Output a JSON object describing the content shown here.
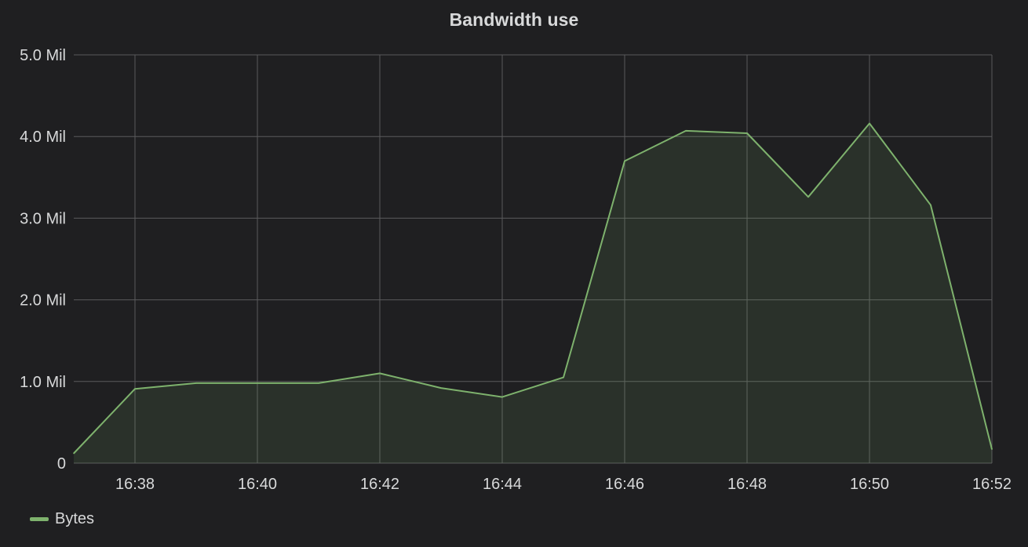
{
  "panel": {
    "title": "Bandwidth use"
  },
  "colors": {
    "background": "#1f1f21",
    "grid": "#5a5a5c",
    "series_line": "#7eb26d",
    "series_fill": "rgba(126,178,109,0.12)",
    "text": "#d8d9da"
  },
  "chart_data": {
    "type": "area",
    "title": "Bandwidth use",
    "xlabel": "",
    "ylabel": "",
    "grid": true,
    "legend_position": "bottom-left",
    "x": [
      "16:37",
      "16:38",
      "16:39",
      "16:40",
      "16:41",
      "16:42",
      "16:43",
      "16:44",
      "16:45",
      "16:46",
      "16:47",
      "16:48",
      "16:49",
      "16:50",
      "16:51",
      "16:52"
    ],
    "x_ticks": [
      "16:38",
      "16:40",
      "16:42",
      "16:44",
      "16:46",
      "16:48",
      "16:50",
      "16:52"
    ],
    "x_range": [
      "16:37",
      "16:52"
    ],
    "y_ticks": [
      {
        "value": 0,
        "label": "0"
      },
      {
        "value": 1000000,
        "label": "1.0 Mil"
      },
      {
        "value": 2000000,
        "label": "2.0 Mil"
      },
      {
        "value": 3000000,
        "label": "3.0 Mil"
      },
      {
        "value": 4000000,
        "label": "4.0 Mil"
      },
      {
        "value": 5000000,
        "label": "5.0 Mil"
      }
    ],
    "ylim": [
      0,
      5000000
    ],
    "series": [
      {
        "name": "Bytes",
        "values": [
          120000,
          910000,
          980000,
          980000,
          980000,
          1100000,
          920000,
          810000,
          1050000,
          3700000,
          4070000,
          4040000,
          3260000,
          4160000,
          3160000,
          170000
        ]
      }
    ]
  }
}
